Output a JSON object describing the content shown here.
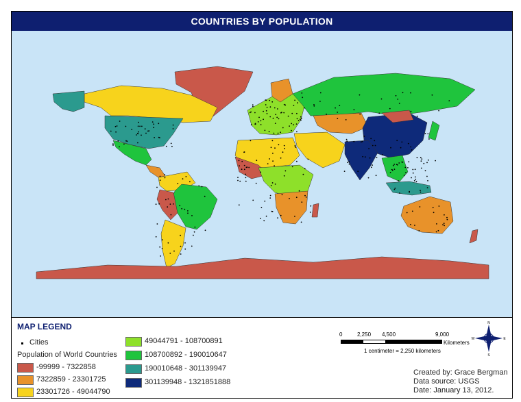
{
  "title": "COUNTRIES BY POPULATION",
  "legend": {
    "heading": "MAP LEGEND",
    "cities_label": "Cities",
    "population_label": "Population of World Countries",
    "classes": [
      {
        "label": "-99999 - 7322858",
        "color": "#c9584a"
      },
      {
        "label": "7322859 - 23301725",
        "color": "#e8922a"
      },
      {
        "label": "23301726 - 49044790",
        "color": "#f7d31c"
      },
      {
        "label": "49044791 - 108700891",
        "color": "#8ee02a"
      },
      {
        "label": "108700892 - 190010647",
        "color": "#1fc43d"
      },
      {
        "label": "190010648 - 301139947",
        "color": "#2b9a8e"
      },
      {
        "label": "301139948 - 1321851888",
        "color": "#0e2a7a"
      }
    ]
  },
  "scale": {
    "ticks": [
      "0",
      "2,250",
      "4,500",
      "9,000"
    ],
    "unit": "Kilometers",
    "ratio": "1 centimeter = 2,250 kilometers"
  },
  "compass": {
    "n": "N",
    "s": "S",
    "e": "E",
    "w": "W"
  },
  "credits": {
    "author": "Created by: Grace Bergman",
    "source": "Data source: USGS",
    "date": "Date: January 13, 2012."
  },
  "colors": {
    "ocean": "#c9e4f7",
    "title_bar": "#0e1f70"
  }
}
